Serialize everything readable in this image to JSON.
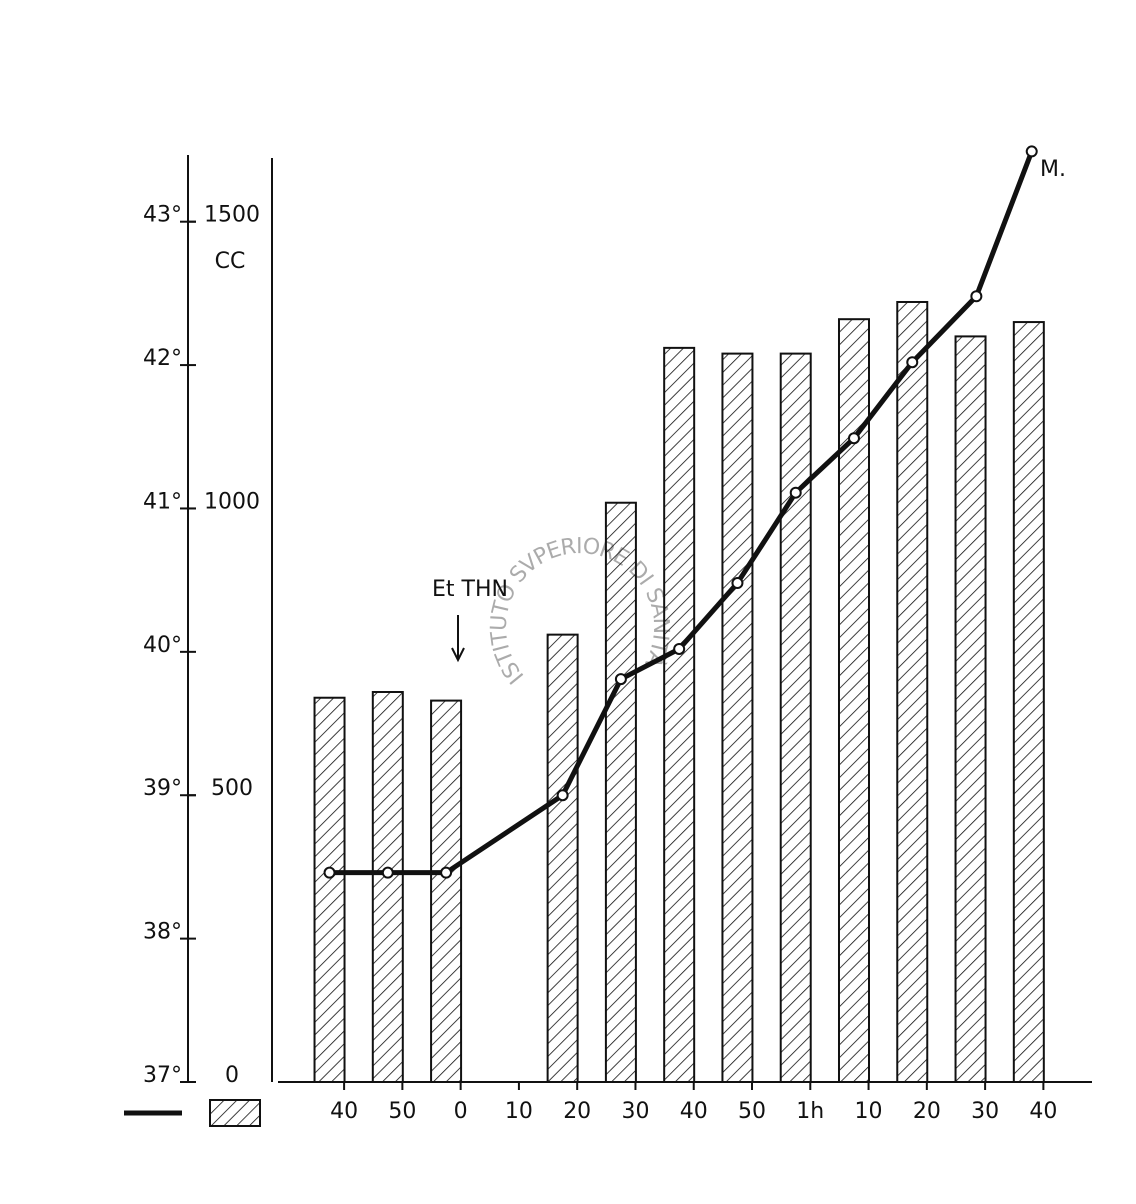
{
  "chart_data": {
    "type": "combo",
    "xlim": [
      -31,
      108
    ],
    "xticks": [
      {
        "value": -20,
        "label": "40"
      },
      {
        "value": -10,
        "label": "50"
      },
      0,
      10,
      20,
      30,
      {
        "value": 40,
        "label": "40"
      },
      {
        "value": 50,
        "label": "50"
      },
      {
        "value": 60,
        "label": "1h"
      },
      {
        "value": 70,
        "label": "10"
      },
      {
        "value": 80,
        "label": "20"
      },
      {
        "value": 90,
        "label": "30"
      },
      {
        "value": 100,
        "label": "40"
      }
    ],
    "ylim": [
      37,
      43.5
    ],
    "yticks": [
      {
        "value": 37,
        "label": "37°"
      },
      {
        "value": 38,
        "label": "38°"
      },
      {
        "value": 39,
        "label": "39°"
      },
      {
        "value": 40,
        "label": "40°"
      },
      {
        "value": 41,
        "label": "41°"
      },
      {
        "value": 42,
        "label": "42°"
      },
      {
        "value": 43,
        "label": "43°"
      }
    ],
    "y2lim": [
      0,
      1625
    ],
    "y2ticks": [
      0,
      500,
      1000,
      1500
    ],
    "y2_label": "CC",
    "series": [
      {
        "kind": "bar",
        "axis": "y2",
        "color": "#111",
        "x": [
          -22.5,
          -12.5,
          -2.5,
          17.5,
          27.5,
          37.5,
          47.5,
          57.5,
          67.5,
          77.5,
          87.5,
          97.5
        ],
        "values": [
          670,
          680,
          665,
          780,
          1010,
          1280,
          1270,
          1270,
          1330,
          1360,
          1300,
          1325
        ]
      },
      {
        "kind": "line",
        "color": "#111",
        "x": [
          -22.5,
          -12.5,
          -2.5,
          17.5,
          27.5,
          37.5,
          47.5,
          57.5,
          67.5,
          77.5,
          88.5,
          98
        ],
        "values": [
          38.46,
          38.46,
          38.46,
          39.0,
          39.81,
          40.02,
          40.48,
          41.11,
          41.49,
          42.02,
          42.48,
          43.49
        ]
      }
    ],
    "annotations": [
      "Et THN",
      "M."
    ],
    "watermark": "ISTITUTO SVPERIORE DI SANITÀ"
  }
}
